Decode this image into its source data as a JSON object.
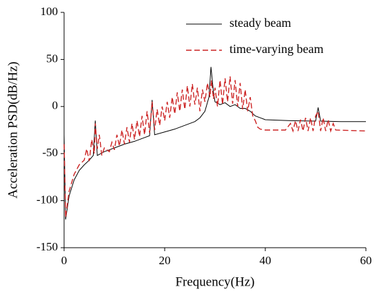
{
  "chart_data": {
    "type": "line",
    "xlabel": "Frequency(Hz)",
    "ylabel": "Acceleration PSD(dB/Hz)",
    "xlim": [
      0,
      60
    ],
    "xticks": [
      0,
      20,
      40,
      60
    ],
    "ylim": [
      -150,
      100
    ],
    "yticks": [
      -150,
      -100,
      -50,
      0,
      50,
      100
    ],
    "legend": "upper right",
    "series": [
      {
        "name": "steady beam",
        "color": "#000000",
        "linestyle": "solid",
        "x": [
          0,
          0.3,
          1,
          2,
          3,
          4,
          5,
          5.8,
          6.2,
          6.6,
          8,
          10,
          12,
          14,
          16,
          17,
          17.5,
          18,
          20,
          22,
          24,
          26,
          27,
          28,
          28.8,
          29.2,
          29.7,
          30,
          31,
          32,
          33,
          34,
          35,
          36,
          37,
          38,
          39,
          40,
          45,
          50,
          50.5,
          51,
          55,
          60
        ],
        "values": [
          -30,
          -120,
          -95,
          -78,
          -68,
          -62,
          -57,
          -52,
          -15,
          -52,
          -48,
          -44,
          -40,
          -37,
          -33,
          -31,
          7,
          -30,
          -27,
          -24,
          -20,
          -16,
          -12,
          -5,
          10,
          42,
          15,
          5,
          2,
          4,
          0,
          2,
          -2,
          -2,
          -5,
          -10,
          -12,
          -14,
          -15,
          -15.5,
          -1,
          -15.5,
          -16,
          -16
        ]
      },
      {
        "name": "time-varying beam",
        "color": "#cc2222",
        "linestyle": "dashed",
        "x": [
          0,
          0.3,
          1,
          2,
          3,
          4,
          4.5,
          5,
          5.5,
          6,
          6.2,
          6.6,
          7,
          7.5,
          8,
          9,
          9.5,
          10,
          10.5,
          11,
          11.5,
          12,
          12.5,
          13,
          13.5,
          14,
          14.5,
          15,
          15.5,
          16,
          16.5,
          17,
          17.5,
          18,
          18.5,
          19,
          19.5,
          20,
          20.5,
          21,
          21.5,
          22,
          22.5,
          23,
          23.5,
          24,
          24.5,
          25,
          25.5,
          26,
          26.5,
          27,
          27.5,
          28,
          28.5,
          29,
          29.3,
          29.7,
          30,
          30.5,
          31,
          31.5,
          32,
          32.5,
          33,
          33.5,
          34,
          34.5,
          35,
          35.5,
          36,
          36.5,
          37,
          37.5,
          38,
          38.5,
          39,
          40,
          44,
          45,
          45.5,
          46,
          46.5,
          47,
          47.5,
          48,
          48.5,
          49,
          49.5,
          50,
          50.5,
          51,
          51.5,
          52,
          52.5,
          53,
          53.5,
          54,
          60
        ],
        "values": [
          -40,
          -118,
          -90,
          -72,
          -62,
          -57,
          -45,
          -58,
          -35,
          -50,
          -18,
          -45,
          -30,
          -52,
          -44,
          -48,
          -38,
          -46,
          -30,
          -42,
          -25,
          -40,
          -22,
          -38,
          -18,
          -35,
          -15,
          -32,
          -10,
          -30,
          -5,
          -28,
          5,
          -25,
          -3,
          -20,
          0,
          -15,
          5,
          -12,
          10,
          -8,
          15,
          -5,
          18,
          -3,
          22,
          0,
          24,
          2,
          20,
          -5,
          18,
          5,
          25,
          10,
          28,
          8,
          20,
          0,
          28,
          2,
          30,
          5,
          32,
          3,
          28,
          0,
          25,
          -3,
          18,
          -5,
          10,
          -10,
          -15,
          -22,
          -24,
          -25,
          -25,
          -18,
          -26,
          -15,
          -26,
          -14,
          -26,
          -12,
          -26,
          -12,
          -26,
          -10,
          -5,
          -26,
          -12,
          -26,
          -14,
          -26,
          -18,
          -25,
          -26
        ]
      }
    ]
  }
}
